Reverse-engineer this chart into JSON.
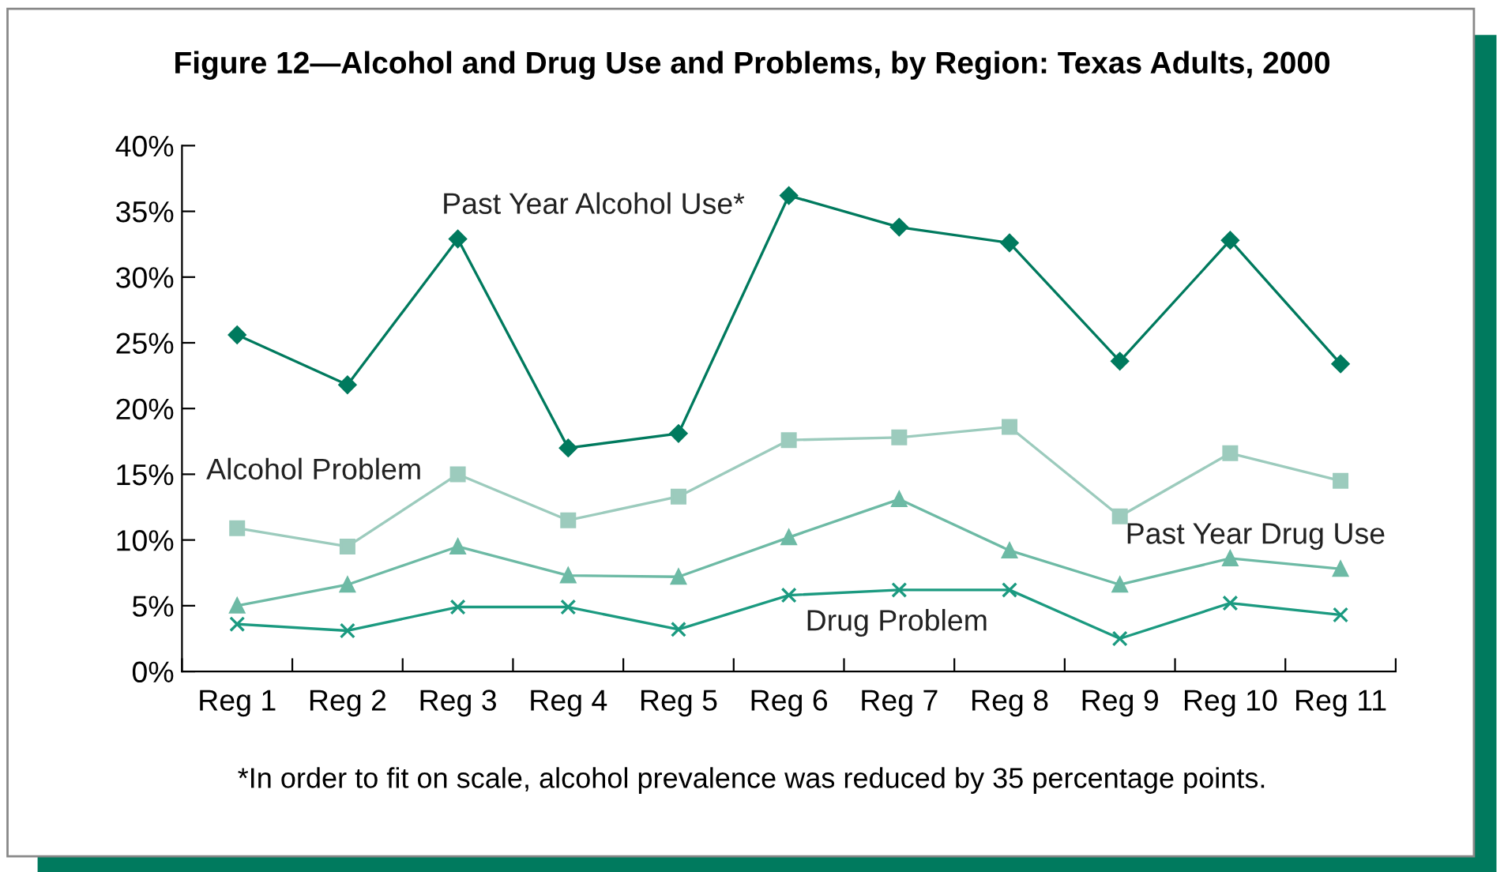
{
  "chart_data": {
    "type": "line",
    "title": "Figure 12—Alcohol and Drug Use and Problems, by Region: Texas Adults, 2000",
    "categories": [
      "Reg 1",
      "Reg 2",
      "Reg 3",
      "Reg 4",
      "Reg 5",
      "Reg 6",
      "Reg 7",
      "Reg 8",
      "Reg 9",
      "Reg 10",
      "Reg 11"
    ],
    "series": [
      {
        "name": "Past Year Alcohol Use*",
        "color": "#007a5e",
        "marker": "diamond",
        "values": [
          25.6,
          21.8,
          32.9,
          17.0,
          18.1,
          36.2,
          33.8,
          32.6,
          23.6,
          32.8,
          23.4
        ]
      },
      {
        "name": "Alcohol Problem",
        "color": "#9ccbbd",
        "marker": "square",
        "values": [
          10.9,
          9.5,
          15.0,
          11.5,
          13.3,
          17.6,
          17.8,
          18.6,
          11.8,
          16.6,
          14.5
        ]
      },
      {
        "name": "Past Year Drug Use",
        "color": "#6dbaa5",
        "marker": "triangle",
        "values": [
          5.0,
          6.6,
          9.5,
          7.3,
          7.2,
          10.2,
          13.1,
          9.2,
          6.6,
          8.6,
          7.8
        ]
      },
      {
        "name": "Drug Problem",
        "color": "#1b9a80",
        "marker": "cross",
        "values": [
          3.6,
          3.1,
          4.9,
          4.9,
          3.2,
          5.8,
          6.2,
          6.2,
          2.5,
          5.2,
          4.3
        ]
      }
    ],
    "ylim": [
      0,
      40
    ],
    "yticks": [
      {
        "value": 0,
        "label": "0%"
      },
      {
        "value": 5,
        "label": "5%"
      },
      {
        "value": 10,
        "label": "10%"
      },
      {
        "value": 15,
        "label": "15%"
      },
      {
        "value": 20,
        "label": "20%"
      },
      {
        "value": 25,
        "label": "25%"
      },
      {
        "value": 30,
        "label": "30%"
      },
      {
        "value": 35,
        "label": "35%"
      },
      {
        "value": 40,
        "label": "40%"
      }
    ],
    "annotations": [
      "*In order to fit on scale, alcohol prevalence was reduced by 35 percentage points."
    ],
    "grid": false,
    "legend": false,
    "line_style": "solid"
  }
}
